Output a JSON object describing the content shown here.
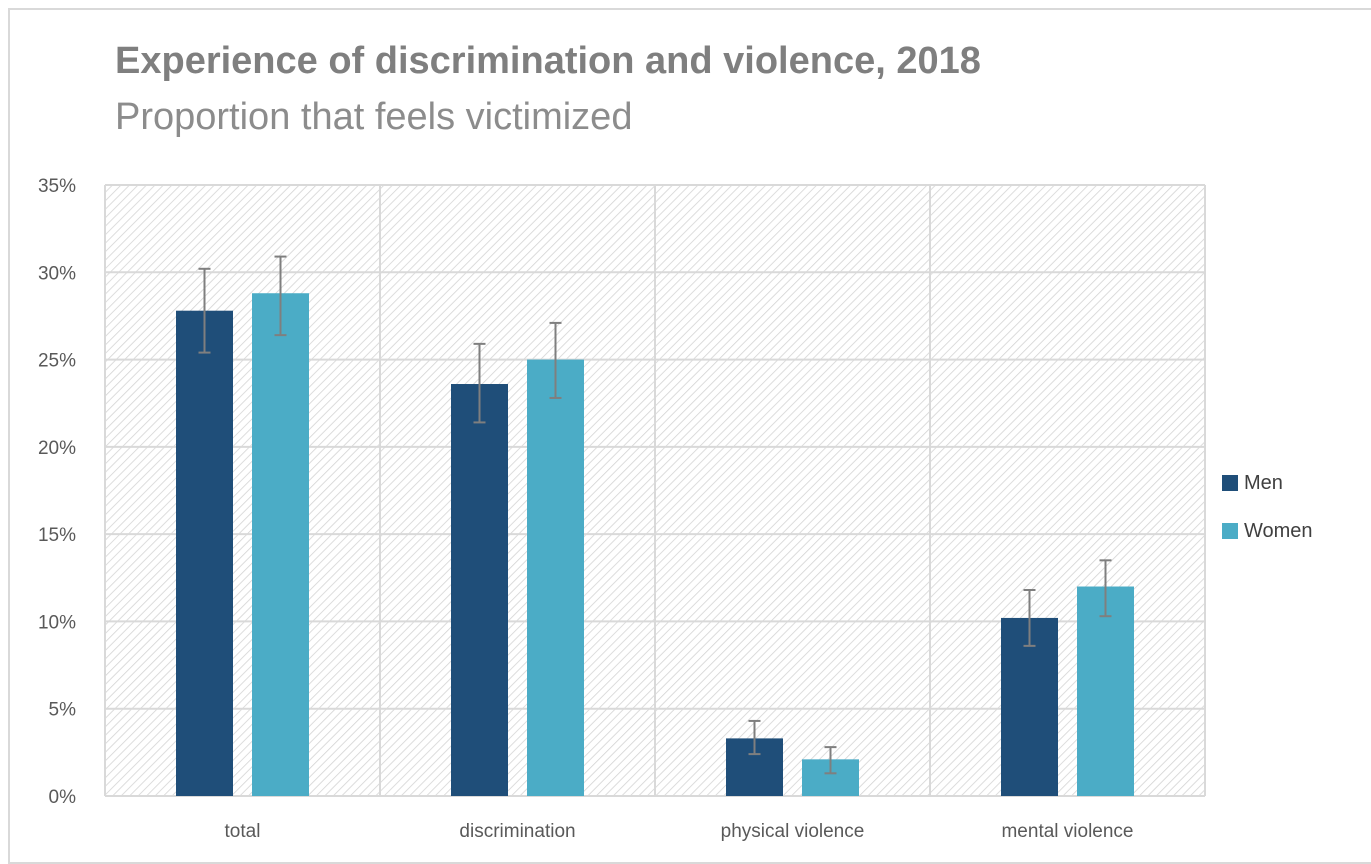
{
  "chart_data": {
    "type": "bar",
    "title": "Experience of discrimination and violence, 2018",
    "subtitle": "Proportion that feels victimized",
    "categories": [
      "total",
      "discrimination",
      "physical violence",
      "mental violence"
    ],
    "series": [
      {
        "name": "Men",
        "color": "#1f4e79",
        "values": [
          27.8,
          23.6,
          3.3,
          10.2
        ],
        "error_low": [
          25.4,
          21.4,
          2.4,
          8.6
        ],
        "error_high": [
          30.2,
          25.9,
          4.3,
          11.8
        ]
      },
      {
        "name": "Women",
        "color": "#4bacc6",
        "values": [
          28.8,
          25.0,
          2.1,
          12.0
        ],
        "error_low": [
          26.4,
          22.8,
          1.3,
          10.3
        ],
        "error_high": [
          30.9,
          27.1,
          2.8,
          13.5
        ]
      }
    ],
    "ylim": [
      0,
      35
    ],
    "yticks": [
      "0%",
      "5%",
      "10%",
      "15%",
      "20%",
      "25%",
      "30%",
      "35%"
    ],
    "xlabel": "",
    "ylabel": "",
    "grid": true,
    "legend_position": "right",
    "plot_background": "diagonal-hatch"
  }
}
